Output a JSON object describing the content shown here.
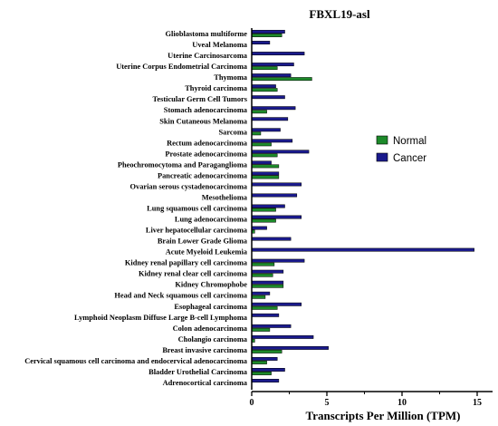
{
  "chart_data": {
    "type": "bar",
    "orientation": "horizontal",
    "title": "FBXL19-asl",
    "xlabel": "Transcripts Per Million (TPM)",
    "ylabel": "",
    "xlim": [
      0,
      15
    ],
    "xticks": [
      0,
      5,
      10,
      15
    ],
    "grid": false,
    "legend_position": "right",
    "categories": [
      "Glioblastoma multiforme",
      "Uveal Melanoma",
      "Uterine Carcinosarcoma",
      "Uterine Corpus Endometrial Carcinoma",
      "Thymoma",
      "Thyroid carcinoma",
      "Testicular Germ Cell Tumors",
      "Stomach adenocarcinoma",
      "Skin Cutaneous Melanoma",
      "Sarcoma",
      "Rectum adenocarcinoma",
      "Prostate adenocarcinoma",
      "Pheochromocytoma and Paraganglioma",
      "Pancreatic adenocarcinoma",
      "Ovarian serous cystadenocarcinoma",
      "Mesothelioma",
      "Lung squamous cell carcinoma",
      "Lung adenocarcinoma",
      "Liver hepatocellular carcinoma",
      "Brain Lower Grade Glioma",
      "Acute Myeloid Leukemia",
      "Kidney renal papillary cell carcinoma",
      "Kidney renal clear cell carcinoma",
      "Kidney Chromophobe",
      "Head and Neck squamous cell carcinoma",
      "Esophageal carcinoma",
      "Lymphoid Neoplasm Diffuse Large B-cell Lymphoma",
      "Colon adenocarcinoma",
      "Cholangio carcinoma",
      "Breast invasive carcinoma",
      "Cervical squamous cell carcinoma and endocervical adenocarcinoma",
      "Bladder Urothelial Carcinoma",
      "Adrenocortical carcinoma"
    ],
    "series": [
      {
        "name": "Cancer",
        "color": "#1a1a8c",
        "values": [
          2.2,
          1.2,
          3.5,
          2.8,
          2.6,
          1.6,
          2.2,
          2.9,
          2.4,
          1.9,
          2.7,
          3.8,
          1.3,
          1.8,
          3.3,
          3.0,
          2.2,
          3.3,
          1.0,
          2.6,
          14.8,
          3.5,
          2.1,
          2.1,
          1.2,
          3.3,
          1.8,
          2.6,
          4.1,
          5.1,
          1.7,
          2.2,
          1.8
        ]
      },
      {
        "name": "Normal",
        "color": "#1d8a2a",
        "values": [
          2.0,
          0,
          0,
          1.7,
          4.0,
          1.7,
          0,
          1.0,
          0,
          0.6,
          1.3,
          1.7,
          1.8,
          1.8,
          0,
          0,
          1.6,
          1.6,
          0.2,
          0,
          0,
          1.5,
          1.4,
          2.1,
          0.9,
          1.7,
          0,
          1.2,
          0.2,
          2.0,
          1.0,
          1.3,
          0
        ]
      }
    ]
  }
}
